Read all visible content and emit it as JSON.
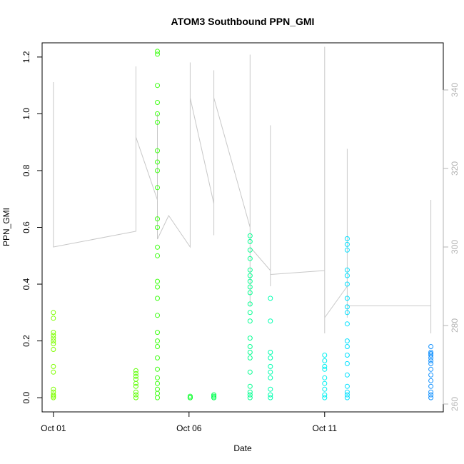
{
  "chart_data": {
    "type": "scatter",
    "title": "ATOM3 Southbound PPN_GMI",
    "xlabel": "Date",
    "ylabel": "PPN_GMI",
    "xlim": [
      "2024-09-30T14:00",
      "2024-10-15T09:00"
    ],
    "ylim": [
      -0.05,
      1.25
    ],
    "x_ticks": [
      {
        "label": "Oct 01",
        "value": "2024-10-01T00:00"
      },
      {
        "label": "Oct 06",
        "value": "2024-10-06T00:00"
      },
      {
        "label": "Oct 11",
        "value": "2024-10-11T00:00"
      }
    ],
    "y_ticks": [
      "0.0",
      "0.2",
      "0.4",
      "0.6",
      "0.8",
      "1.0",
      "1.2"
    ],
    "y2_ticks": [
      "260",
      "280",
      "300",
      "320",
      "340"
    ],
    "y2lim": [
      258,
      352
    ],
    "colors": {
      "background": "#ffffff",
      "axis": "#000000",
      "secondary_axis": "#b3b3b3",
      "line": "#c8c8c8"
    },
    "clusters": [
      {
        "x": "2024-10-01T00:00",
        "color": "#7fff00",
        "points": [
          [
            "2024-10-01T00:00",
            0.3
          ],
          [
            "2024-10-01T00:00",
            0.28
          ],
          [
            "2024-10-01T00:00",
            0.23
          ],
          [
            "2024-10-01T00:00",
            0.22
          ],
          [
            "2024-10-01T00:00",
            0.21
          ],
          [
            "2024-10-01T00:00",
            0.2
          ],
          [
            "2024-10-01T00:00",
            0.19
          ],
          [
            "2024-10-01T00:00",
            0.17
          ],
          [
            "2024-10-01T00:00",
            0.11
          ],
          [
            "2024-10-01T00:00",
            0.09
          ],
          [
            "2024-10-01T00:00",
            0.03
          ],
          [
            "2024-10-01T00:00",
            0.02
          ],
          [
            "2024-10-01T00:00",
            0.01
          ],
          [
            "2024-10-01T00:00",
            0.005
          ],
          [
            "2024-10-01T00:00",
            0.0
          ]
        ]
      },
      {
        "x": "2024-10-04T01:00",
        "color": "#5cff00",
        "points": [
          [
            "2024-10-04T01:00",
            0.095
          ],
          [
            "2024-10-04T01:00",
            0.085
          ],
          [
            "2024-10-04T01:00",
            0.075
          ],
          [
            "2024-10-04T01:00",
            0.065
          ],
          [
            "2024-10-04T01:00",
            0.05
          ],
          [
            "2024-10-04T01:00",
            0.04
          ],
          [
            "2024-10-04T01:00",
            0.02
          ],
          [
            "2024-10-04T01:00",
            0.01
          ],
          [
            "2024-10-04T01:00",
            0.0
          ]
        ]
      },
      {
        "x": "2024-10-04T20:00",
        "color": "#3cff10",
        "points": [
          [
            "2024-10-04T20:00",
            1.22
          ],
          [
            "2024-10-04T20:00",
            1.21
          ],
          [
            "2024-10-04T20:00",
            1.1
          ],
          [
            "2024-10-04T20:00",
            1.04
          ],
          [
            "2024-10-04T20:00",
            1.0
          ],
          [
            "2024-10-04T20:00",
            0.97
          ],
          [
            "2024-10-04T20:00",
            0.87
          ],
          [
            "2024-10-04T20:00",
            0.83
          ],
          [
            "2024-10-04T20:00",
            0.8
          ],
          [
            "2024-10-04T20:00",
            0.74
          ],
          [
            "2024-10-04T20:00",
            0.63
          ],
          [
            "2024-10-04T20:00",
            0.6
          ],
          [
            "2024-10-04T20:00",
            0.53
          ],
          [
            "2024-10-04T20:00",
            0.5
          ],
          [
            "2024-10-04T20:00",
            0.41
          ],
          [
            "2024-10-04T20:00",
            0.39
          ],
          [
            "2024-10-04T20:00",
            0.35
          ],
          [
            "2024-10-04T20:00",
            0.29
          ],
          [
            "2024-10-04T20:00",
            0.23
          ],
          [
            "2024-10-04T20:00",
            0.2
          ],
          [
            "2024-10-04T20:00",
            0.18
          ],
          [
            "2024-10-04T20:00",
            0.14
          ],
          [
            "2024-10-04T20:00",
            0.1
          ],
          [
            "2024-10-04T20:00",
            0.07
          ],
          [
            "2024-10-04T20:00",
            0.05
          ],
          [
            "2024-10-04T20:00",
            0.03
          ],
          [
            "2024-10-04T20:00",
            0.015
          ],
          [
            "2024-10-04T20:00",
            0.0
          ]
        ]
      },
      {
        "x": "2024-10-06T01:00",
        "color": "#10ff30",
        "points": [
          [
            "2024-10-06T01:00",
            0.005
          ],
          [
            "2024-10-06T01:00",
            0.0
          ],
          [
            "2024-10-06T01:00",
            0.0
          ],
          [
            "2024-10-06T01:00",
            0.0
          ]
        ]
      },
      {
        "x": "2024-10-06T22:00",
        "color": "#00ff50",
        "points": [
          [
            "2024-10-06T22:00",
            0.01
          ],
          [
            "2024-10-06T22:00",
            0.005
          ],
          [
            "2024-10-06T22:00",
            0.0
          ],
          [
            "2024-10-06T22:00",
            0.0
          ]
        ]
      },
      {
        "x": "2024-10-08T06:00",
        "color": "#00ff90",
        "points": [
          [
            "2024-10-08T06:00",
            0.57
          ],
          [
            "2024-10-08T06:00",
            0.55
          ],
          [
            "2024-10-08T06:00",
            0.52
          ],
          [
            "2024-10-08T06:00",
            0.49
          ],
          [
            "2024-10-08T06:00",
            0.45
          ],
          [
            "2024-10-08T06:00",
            0.43
          ],
          [
            "2024-10-08T06:00",
            0.41
          ],
          [
            "2024-10-08T06:00",
            0.39
          ],
          [
            "2024-10-08T06:00",
            0.37
          ],
          [
            "2024-10-08T06:00",
            0.33
          ],
          [
            "2024-10-08T06:00",
            0.3
          ],
          [
            "2024-10-08T06:00",
            0.27
          ],
          [
            "2024-10-08T06:00",
            0.21
          ],
          [
            "2024-10-08T06:00",
            0.18
          ],
          [
            "2024-10-08T06:00",
            0.16
          ],
          [
            "2024-10-08T06:00",
            0.14
          ],
          [
            "2024-10-08T06:00",
            0.09
          ],
          [
            "2024-10-08T06:00",
            0.04
          ],
          [
            "2024-10-08T06:00",
            0.02
          ],
          [
            "2024-10-08T06:00",
            0.01
          ],
          [
            "2024-10-08T06:00",
            0.0
          ]
        ]
      },
      {
        "x": "2024-10-09T00:00",
        "color": "#00ffb0",
        "points": [
          [
            "2024-10-09T00:00",
            0.35
          ],
          [
            "2024-10-09T00:00",
            0.27
          ],
          [
            "2024-10-09T00:00",
            0.16
          ],
          [
            "2024-10-09T00:00",
            0.14
          ],
          [
            "2024-10-09T00:00",
            0.11
          ],
          [
            "2024-10-09T00:00",
            0.09
          ],
          [
            "2024-10-09T00:00",
            0.07
          ],
          [
            "2024-10-09T00:00",
            0.03
          ],
          [
            "2024-10-09T00:00",
            0.01
          ],
          [
            "2024-10-09T00:00",
            0.0
          ]
        ]
      },
      {
        "x": "2024-10-11T00:00",
        "color": "#00f0f0",
        "points": [
          [
            "2024-10-11T00:00",
            0.15
          ],
          [
            "2024-10-11T00:00",
            0.13
          ],
          [
            "2024-10-11T00:00",
            0.11
          ],
          [
            "2024-10-11T00:00",
            0.1
          ],
          [
            "2024-10-11T00:00",
            0.07
          ],
          [
            "2024-10-11T00:00",
            0.05
          ],
          [
            "2024-10-11T00:00",
            0.03
          ],
          [
            "2024-10-11T00:00",
            0.01
          ],
          [
            "2024-10-11T00:00",
            0.0
          ]
        ]
      },
      {
        "x": "2024-10-11T20:00",
        "color": "#00e0ff",
        "points": [
          [
            "2024-10-11T20:00",
            0.56
          ],
          [
            "2024-10-11T20:00",
            0.54
          ],
          [
            "2024-10-11T20:00",
            0.52
          ],
          [
            "2024-10-11T20:00",
            0.45
          ],
          [
            "2024-10-11T20:00",
            0.43
          ],
          [
            "2024-10-11T20:00",
            0.4
          ],
          [
            "2024-10-11T20:00",
            0.35
          ],
          [
            "2024-10-11T20:00",
            0.32
          ],
          [
            "2024-10-11T20:00",
            0.3
          ],
          [
            "2024-10-11T20:00",
            0.26
          ],
          [
            "2024-10-11T20:00",
            0.2
          ],
          [
            "2024-10-11T20:00",
            0.18
          ],
          [
            "2024-10-11T20:00",
            0.15
          ],
          [
            "2024-10-11T20:00",
            0.12
          ],
          [
            "2024-10-11T20:00",
            0.08
          ],
          [
            "2024-10-11T20:00",
            0.04
          ],
          [
            "2024-10-11T20:00",
            0.02
          ],
          [
            "2024-10-11T20:00",
            0.01
          ],
          [
            "2024-10-11T20:00",
            0.0
          ]
        ]
      },
      {
        "x": "2024-10-14T22:00",
        "color": "#1090ff",
        "points": [
          [
            "2024-10-14T22:00",
            0.18
          ],
          [
            "2024-10-14T22:00",
            0.16
          ],
          [
            "2024-10-14T22:00",
            0.155
          ],
          [
            "2024-10-14T22:00",
            0.15
          ],
          [
            "2024-10-14T22:00",
            0.14
          ],
          [
            "2024-10-14T22:00",
            0.13
          ],
          [
            "2024-10-14T22:00",
            0.12
          ],
          [
            "2024-10-14T22:00",
            0.1
          ],
          [
            "2024-10-14T22:00",
            0.08
          ],
          [
            "2024-10-14T22:00",
            0.06
          ],
          [
            "2024-10-14T22:00",
            0.04
          ],
          [
            "2024-10-14T22:00",
            0.02
          ],
          [
            "2024-10-14T22:00",
            0.01
          ],
          [
            "2024-10-14T22:00",
            0.0
          ]
        ]
      }
    ],
    "line_series": {
      "axis": "right",
      "color": "#c8c8c8",
      "points": [
        [
          "2024-10-01T00:00",
          300
        ],
        [
          "2024-10-01T00:00",
          305
        ],
        [
          "2024-10-01T00:00",
          342
        ],
        [
          "2024-10-01T00:00",
          334
        ],
        [
          "2024-10-01T00:00",
          300
        ],
        [
          "2024-10-04T01:00",
          304
        ],
        [
          "2024-10-04T01:00",
          346
        ],
        [
          "2024-10-04T01:00",
          328
        ],
        [
          "2024-10-04T20:00",
          312
        ],
        [
          "2024-10-04T20:00",
          334
        ],
        [
          "2024-10-04T20:00",
          305
        ],
        [
          "2024-10-04T20:00",
          325
        ],
        [
          "2024-10-04T20:00",
          302
        ],
        [
          "2024-10-05T06:00",
          308
        ],
        [
          "2024-10-06T01:00",
          300
        ],
        [
          "2024-10-06T01:00",
          345
        ],
        [
          "2024-10-06T01:00",
          347
        ],
        [
          "2024-10-06T01:00",
          302
        ],
        [
          "2024-10-06T01:00",
          338
        ],
        [
          "2024-10-06T22:00",
          311
        ],
        [
          "2024-10-06T22:00",
          345
        ],
        [
          "2024-10-06T22:00",
          303
        ],
        [
          "2024-10-06T22:00",
          338
        ],
        [
          "2024-10-08T06:00",
          305
        ],
        [
          "2024-10-08T06:00",
          325
        ],
        [
          "2024-10-08T06:00",
          285
        ],
        [
          "2024-10-08T06:00",
          349
        ],
        [
          "2024-10-08T06:00",
          300
        ],
        [
          "2024-10-09T00:00",
          294
        ],
        [
          "2024-10-09T00:00",
          331
        ],
        [
          "2024-10-09T00:00",
          290
        ],
        [
          "2024-10-09T00:00",
          327
        ],
        [
          "2024-10-09T00:00",
          293
        ],
        [
          "2024-10-11T00:00",
          294
        ],
        [
          "2024-10-11T00:00",
          351
        ],
        [
          "2024-10-11T00:00",
          278
        ],
        [
          "2024-10-11T00:00",
          343
        ],
        [
          "2024-10-11T00:00",
          282
        ],
        [
          "2024-10-11T20:00",
          290
        ],
        [
          "2024-10-11T20:00",
          325
        ],
        [
          "2024-10-11T20:00",
          282
        ],
        [
          "2024-10-11T20:00",
          321
        ],
        [
          "2024-10-11T20:00",
          285
        ],
        [
          "2024-10-14T22:00",
          285
        ],
        [
          "2024-10-14T22:00",
          312
        ],
        [
          "2024-10-14T22:00",
          278
        ],
        [
          "2024-10-14T22:00",
          308
        ],
        [
          "2024-10-14T22:00",
          283
        ]
      ]
    }
  }
}
